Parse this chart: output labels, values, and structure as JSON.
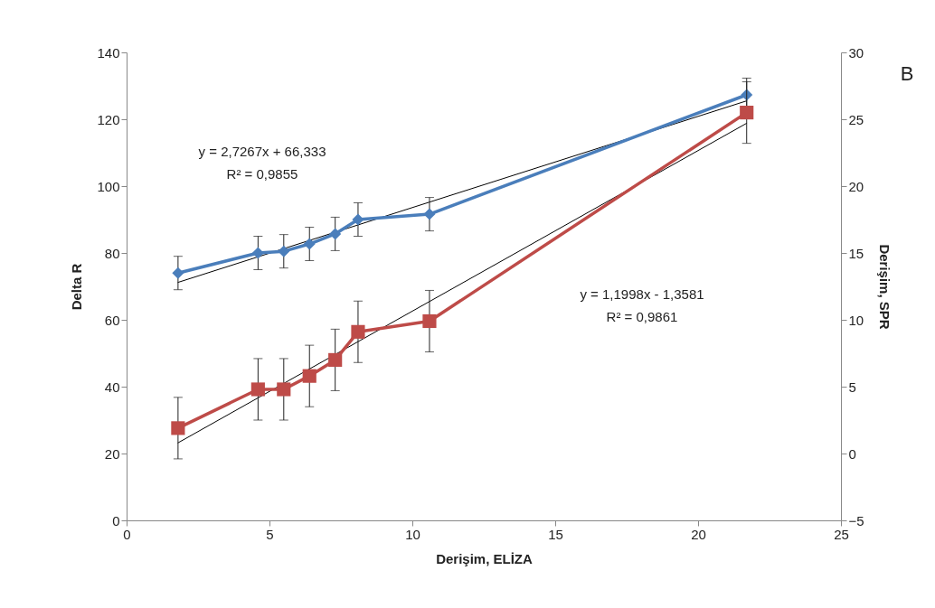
{
  "chart_data": {
    "type": "line",
    "xlabel": "Derişim, ELİZA",
    "ylabel": "Delta R",
    "y2label": "Derişim, SPR",
    "xlim": [
      0,
      25
    ],
    "xticks": [
      0,
      5,
      10,
      15,
      20,
      25
    ],
    "ylim": [
      0,
      140
    ],
    "yticks": [
      0,
      20,
      40,
      60,
      80,
      100,
      120,
      140
    ],
    "y2lim": [
      -5,
      30
    ],
    "y2ticks": [
      -5,
      0,
      5,
      10,
      15,
      20,
      25,
      30
    ],
    "grid": false,
    "line_style": "solid",
    "series": [
      {
        "color": "#4a7ebb",
        "marker": "diamond",
        "x": [
          1.8,
          4.6,
          5.5,
          6.4,
          7.3,
          8.1,
          10.6,
          21.7
        ],
        "values": [
          74,
          80,
          80.5,
          82.7,
          85.7,
          90,
          91.6,
          127.3
        ],
        "errors": [
          5,
          5,
          5,
          5,
          5,
          5,
          5,
          5
        ]
      },
      {
        "color": "#be4b48",
        "marker": "square",
        "axis": "y2",
        "x": [
          1.8,
          4.6,
          5.5,
          6.4,
          7.3,
          8.1,
          10.6,
          21.7
        ],
        "values": [
          1.9,
          4.8,
          4.8,
          5.8,
          7.0,
          9.1,
          9.9,
          25.5
        ],
        "errors": [
          2.3,
          2.3,
          2.3,
          2.3,
          2.3,
          2.3,
          2.3,
          2.3
        ]
      },
      {
        "type": "line",
        "color": "#000000",
        "marker": "none",
        "x": [
          1.8,
          21.7
        ],
        "values": [
          71.2,
          125.5
        ]
      },
      {
        "type": "line",
        "color": "#000000",
        "marker": "none",
        "axis": "y2",
        "x": [
          1.8,
          21.7
        ],
        "values": [
          0.8,
          24.7
        ]
      }
    ],
    "annotations": [
      "y = 2,7267x + 66,333",
      "R² = 0,9855",
      "y = 1,1998x - 1,3581",
      "R² = 0,9861",
      "B"
    ]
  }
}
